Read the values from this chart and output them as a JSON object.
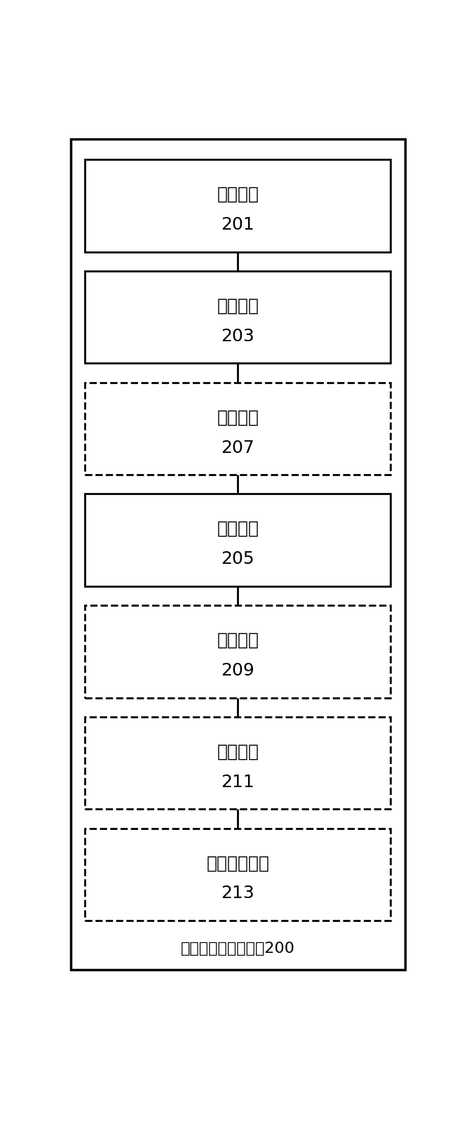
{
  "title": "数据表水平拆分装置200",
  "boxes": [
    {
      "label": "比较模块",
      "num": "201",
      "dashed": false
    },
    {
      "label": "选择模块",
      "num": "203",
      "dashed": false
    },
    {
      "label": "索引模块",
      "num": "207",
      "dashed": true
    },
    {
      "label": "拆分模块",
      "num": "205",
      "dashed": false
    },
    {
      "label": "存储模块",
      "num": "209",
      "dashed": true
    },
    {
      "label": "同步模块",
      "num": "211",
      "dashed": true
    },
    {
      "label": "数据交互模块",
      "num": "213",
      "dashed": true
    }
  ],
  "bg_color": "#ffffff",
  "box_color": "#000000",
  "text_color": "#000000",
  "fig_width": 6.62,
  "fig_height": 16.05
}
